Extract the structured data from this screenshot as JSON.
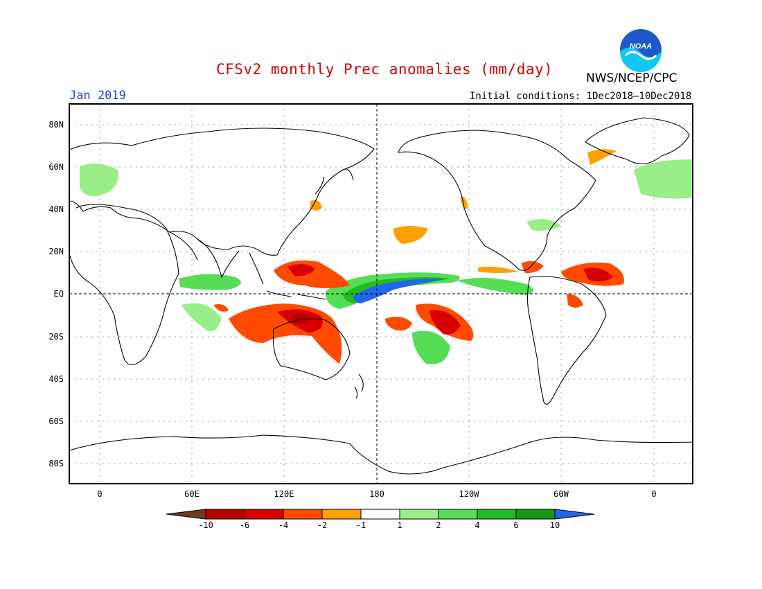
{
  "header": {
    "title": "CFSv2 monthly Prec anomalies (mm/day)",
    "month": "Jan 2019",
    "initial_conditions": "Initial conditions: 1Dec2018–10Dec2018",
    "agency": "NWS/NCEP/CPC",
    "logo_text": "NOAA"
  },
  "axes": {
    "y_ticks": [
      "80N",
      "60N",
      "40N",
      "20N",
      "EQ",
      "20S",
      "40S",
      "60S",
      "80S"
    ],
    "x_ticks": [
      "0",
      "60E",
      "120E",
      "180",
      "120W",
      "60W",
      "0"
    ]
  },
  "colorbar": {
    "labels": [
      "-10",
      "-6",
      "-4",
      "-2",
      "-1",
      "1",
      "2",
      "4",
      "6",
      "10"
    ],
    "colors": [
      "#6b3a22",
      "#b50000",
      "#d80000",
      "#ff4a00",
      "#ffa000",
      "#ffffff",
      "#99ee88",
      "#55dd55",
      "#22bb22",
      "#119911",
      "#2266ee"
    ]
  },
  "colors": {
    "title": "#d40000",
    "month": "#2a3fd8",
    "noaa_blue": "#1e58c8",
    "noaa_cyan": "#10c8f0"
  }
}
